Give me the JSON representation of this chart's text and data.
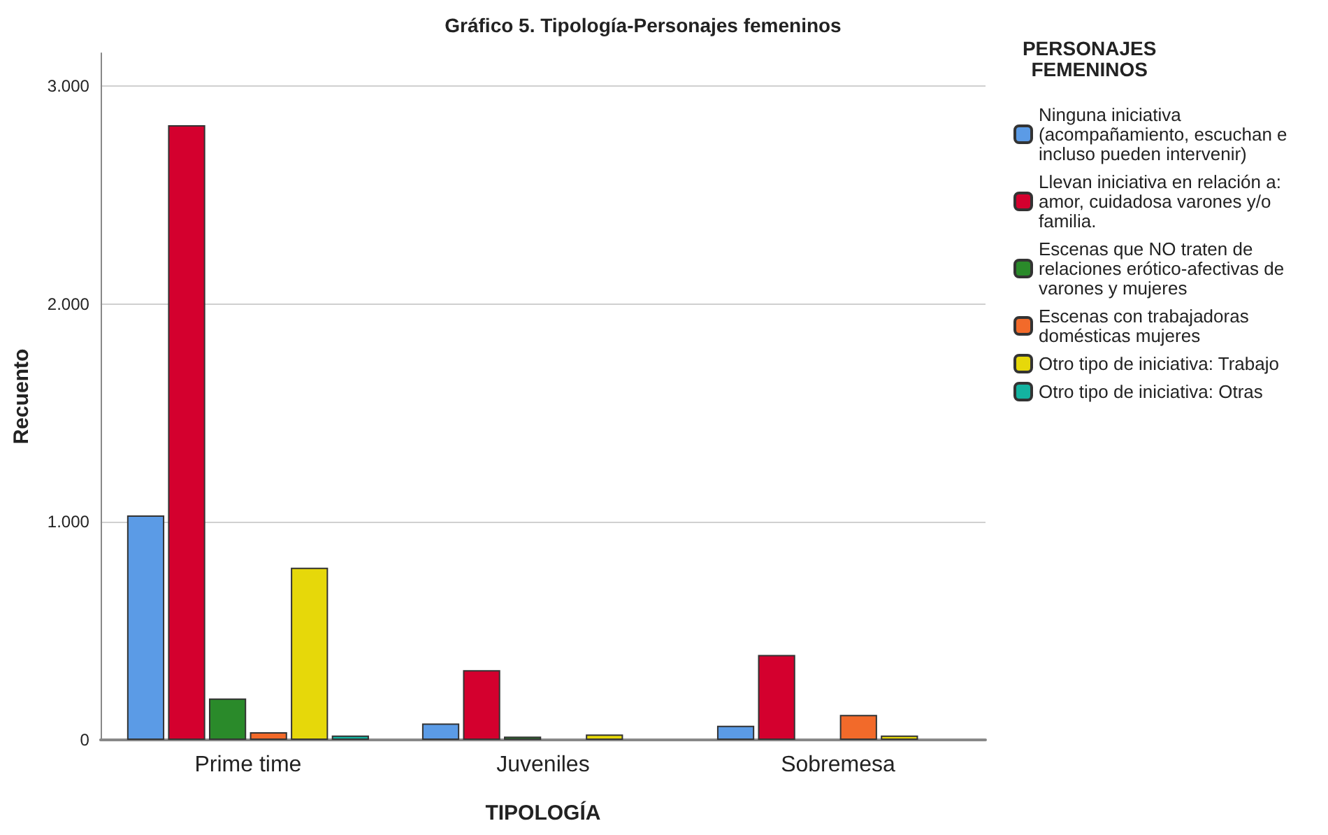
{
  "chart_data": {
    "type": "bar",
    "title": "Gráfico 5. Tipología-Personajes femeninos",
    "xlabel": "TIPOLOGÍA",
    "ylabel": "Recuento",
    "legend_title": "PERSONAJES\nFEMENINOS",
    "categories": [
      "Prime time",
      "Juveniles",
      "Sobremesa"
    ],
    "series": [
      {
        "name": "Ninguna iniciativa (acompañamiento, escuchan e incluso pueden intervenir)",
        "color": "#5b9be6",
        "values": [
          1030,
          75,
          65
        ]
      },
      {
        "name": "Llevan iniciativa en relación a: amor, cuidadosa varones y/o familia.",
        "color": "#d4002e",
        "values": [
          2820,
          320,
          390
        ]
      },
      {
        "name": "Escenas que NO traten de relaciones erótico-afectivas de varones y mujeres",
        "color": "#2a8a2a",
        "values": [
          190,
          15,
          null
        ]
      },
      {
        "name": "Escenas con trabajadoras domésticas mujeres",
        "color": "#f26a2a",
        "values": [
          35,
          null,
          115
        ]
      },
      {
        "name": "Otro tipo de iniciativa: Trabajo",
        "color": "#e6d80a",
        "values": [
          790,
          25,
          20
        ]
      },
      {
        "name": "Otro tipo de iniciativa: Otras",
        "color": "#13b3a0",
        "values": [
          20,
          null,
          null
        ]
      }
    ],
    "ylim": [
      0,
      3150
    ],
    "yticks": [
      {
        "value": 0,
        "label": "0"
      },
      {
        "value": 1000,
        "label": "1.000"
      },
      {
        "value": 2000,
        "label": "2.000"
      },
      {
        "value": 3000,
        "label": "3.000"
      }
    ],
    "grid": "y",
    "legend": "right"
  }
}
